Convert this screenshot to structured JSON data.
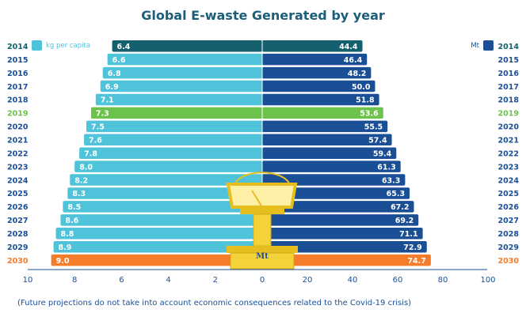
{
  "chart_data": {
    "type": "bar",
    "title": "Global E-waste Generated by year",
    "categories": [
      "2014",
      "2015",
      "2016",
      "2017",
      "2018",
      "2019",
      "2020",
      "2021",
      "2022",
      "2023",
      "2024",
      "2025",
      "2026",
      "2027",
      "2028",
      "2029",
      "2030"
    ],
    "series": [
      {
        "name": "kg per capita",
        "side": "left",
        "color": "#4ec3d9",
        "values": [
          6.4,
          6.6,
          6.8,
          6.9,
          7.1,
          7.3,
          7.5,
          7.6,
          7.8,
          8.0,
          8.2,
          8.3,
          8.5,
          8.6,
          8.8,
          8.9,
          9.0
        ]
      },
      {
        "name": "Mt",
        "side": "right",
        "color": "#1a4f96",
        "values": [
          44.4,
          46.4,
          48.2,
          50.0,
          51.8,
          53.6,
          55.5,
          57.4,
          59.4,
          61.3,
          63.3,
          65.3,
          67.2,
          69.2,
          71.1,
          72.9,
          74.7
        ]
      }
    ],
    "highlight": {
      "2014": {
        "left": "#14606e",
        "right": "#14606e",
        "year_color": "#14606e"
      },
      "2019": {
        "left": "#6cc24a",
        "right": "#6cc24a",
        "year_color": "#6cc24a"
      },
      "2030": {
        "left": "#f47c2a",
        "right": "#f47c2a",
        "year_color": "#f47c2a"
      }
    },
    "left_axis": {
      "range": [
        10,
        0
      ],
      "ticks": [
        "10",
        "8",
        "6",
        "4",
        "2",
        "0"
      ]
    },
    "right_axis": {
      "range": [
        0,
        100
      ],
      "ticks": [
        "20",
        "40",
        "60",
        "80",
        "100"
      ]
    },
    "scale_label": "Mt",
    "footnote": "(Future projections do not take into account economic consequences related to the Covid-19 crisis)"
  }
}
